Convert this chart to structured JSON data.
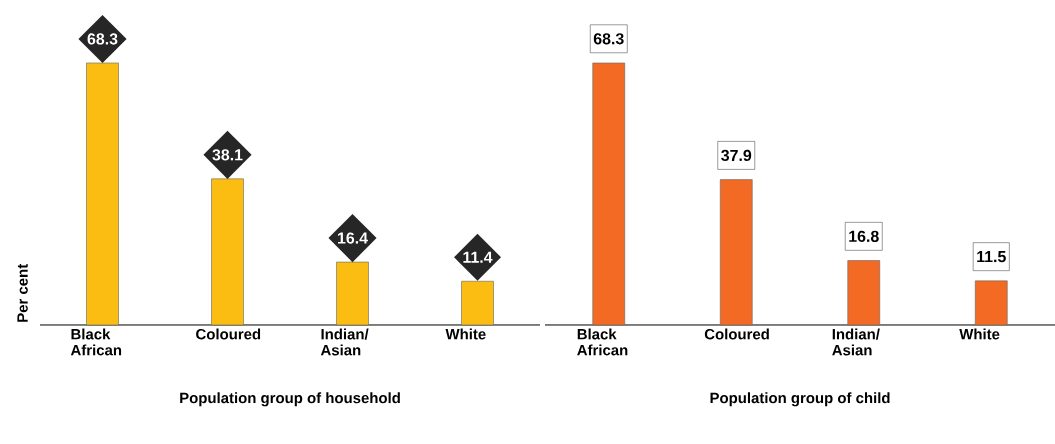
{
  "chart_data": [
    {
      "type": "bar",
      "ylabel": "Per cent",
      "xlabel": "Population group of household",
      "categories": [
        "Black African",
        "Coloured",
        "Indian/ Asian",
        "White"
      ],
      "values": [
        68.3,
        38.1,
        16.4,
        11.4
      ],
      "color": "#fbbd12",
      "data_labels": true,
      "tick_labels": "x"
    },
    {
      "type": "bar",
      "xlabel": "Population group of child",
      "categories": [
        "Black African",
        "Coloured",
        "Indian/ Asian",
        "White"
      ],
      "values": [
        68.3,
        37.9,
        16.8,
        11.5
      ],
      "color": "#f26a24",
      "data_labels": true,
      "tick_labels": "x"
    }
  ]
}
